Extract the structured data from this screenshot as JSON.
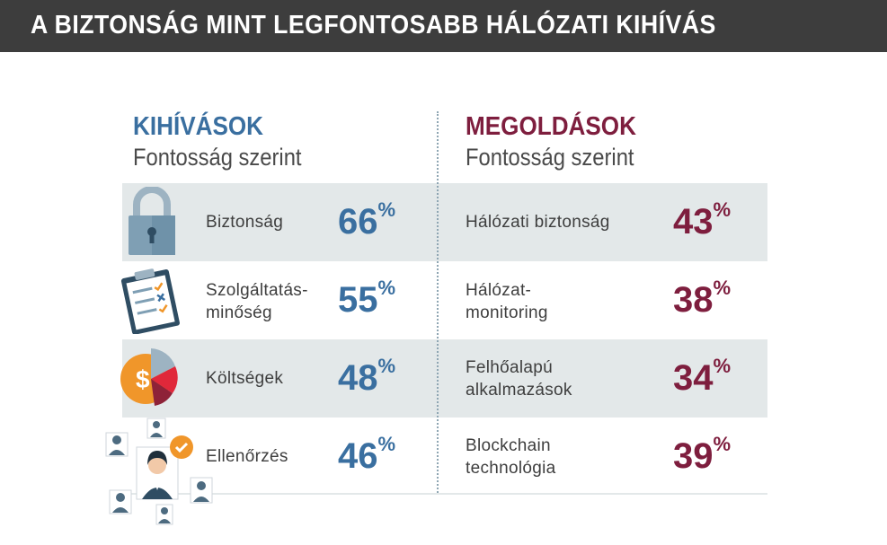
{
  "title": "A BIZTONSÁG MINT LEGFONTOSABB HÁLÓZATI KIHÍVÁS",
  "challenges": {
    "heading": "KIHÍVÁSOK",
    "subheading": "Fontosság szerint",
    "items": [
      {
        "label": "Biztonság",
        "value": "66",
        "icon": "padlock-icon"
      },
      {
        "label": "Szolgáltatás-\nminőség",
        "value": "55",
        "icon": "clipboard-checklist-icon"
      },
      {
        "label": "Költségek",
        "value": "48",
        "icon": "dollar-pie-chart-icon"
      },
      {
        "label": "Ellenőrzés",
        "value": "46",
        "icon": "people-network-icon"
      }
    ]
  },
  "solutions": {
    "heading": "MEGOLDÁSOK",
    "subheading": "Fontosság szerint",
    "items": [
      {
        "label": "Hálózati biztonság",
        "value": "43"
      },
      {
        "label": "Hálózat-\nmonitoring",
        "value": "38"
      },
      {
        "label": "Felhőalapú\nalkalmazások",
        "value": "34"
      },
      {
        "label": "Blockchain\ntechnológia",
        "value": "39"
      }
    ]
  },
  "unit": "%",
  "colors": {
    "title_bar": "#3d3d3d",
    "challenge_accent": "#3a6fa0",
    "solution_accent": "#7e1e3e",
    "band": "#e3e8e9",
    "icon_orange": "#f0962a",
    "icon_red": "#e0283a"
  }
}
